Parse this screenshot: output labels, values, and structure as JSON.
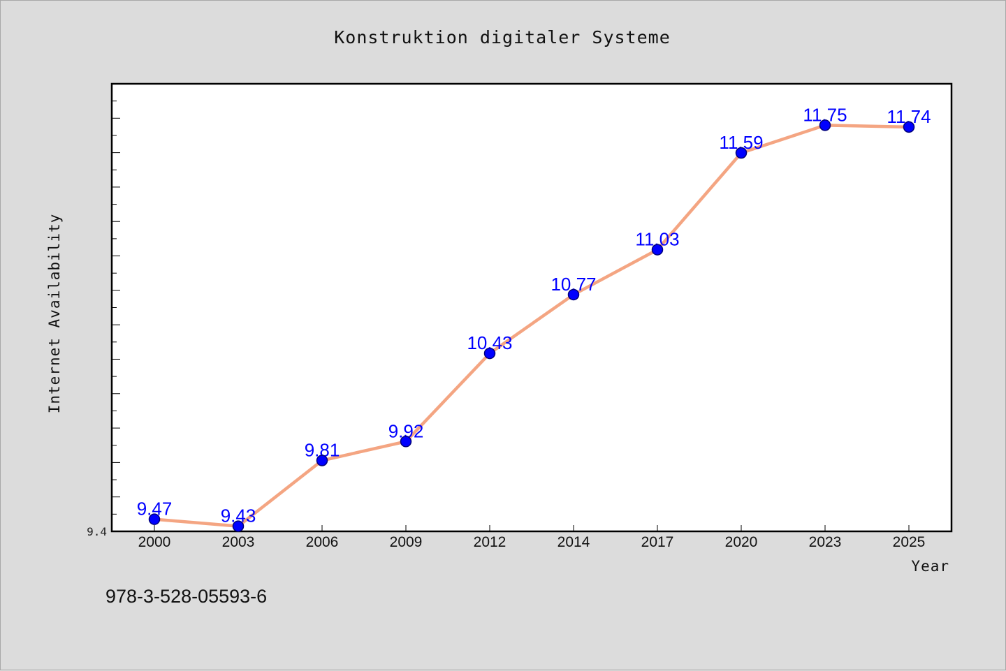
{
  "footer": {
    "isbn": "978-3-528-05593-6"
  },
  "colors": {
    "line": "#f4a582",
    "marker": "#0000ff",
    "label": "#0000ff",
    "plot_bg": "#ffffff",
    "page_bg": "#dcdcdc"
  },
  "chart_data": {
    "type": "line",
    "title": "Konstruktion digitaler Systeme",
    "xlabel": "Year",
    "ylabel": "Internet Availability",
    "categories": [
      "2000",
      "2003",
      "2006",
      "2009",
      "2012",
      "2014",
      "2017",
      "2020",
      "2023",
      "2025"
    ],
    "series": [
      {
        "values": [
          9.47,
          9.43,
          9.81,
          9.92,
          10.43,
          10.77,
          11.03,
          11.59,
          11.75,
          11.74
        ]
      }
    ],
    "ylim": [
      9.4,
      11.99
    ],
    "ytick_labels": [
      "9.4"
    ],
    "grid": false,
    "legend": "none",
    "data_labels": true
  }
}
